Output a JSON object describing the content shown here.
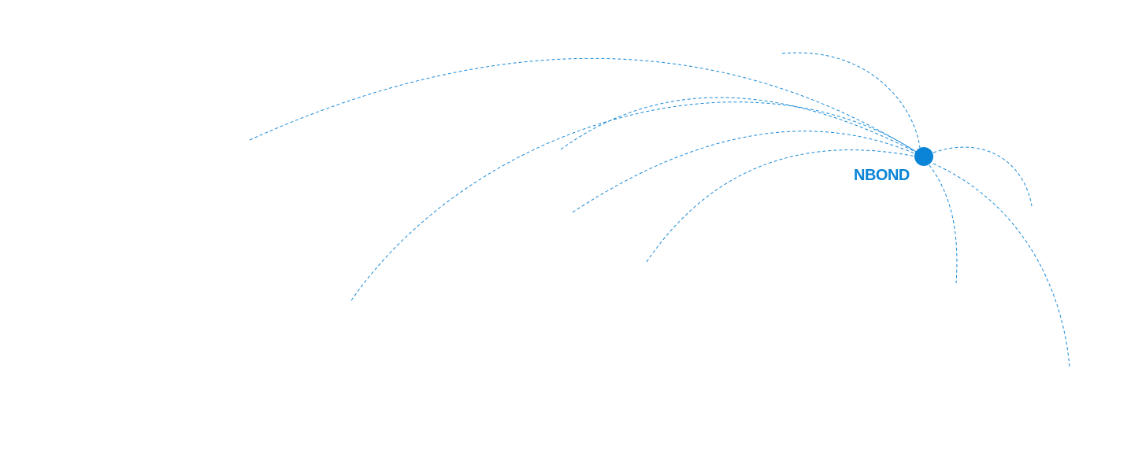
{
  "hub": {
    "label": "NBOND",
    "color": "#0a84d6",
    "line_color": "#1a8ad8"
  }
}
